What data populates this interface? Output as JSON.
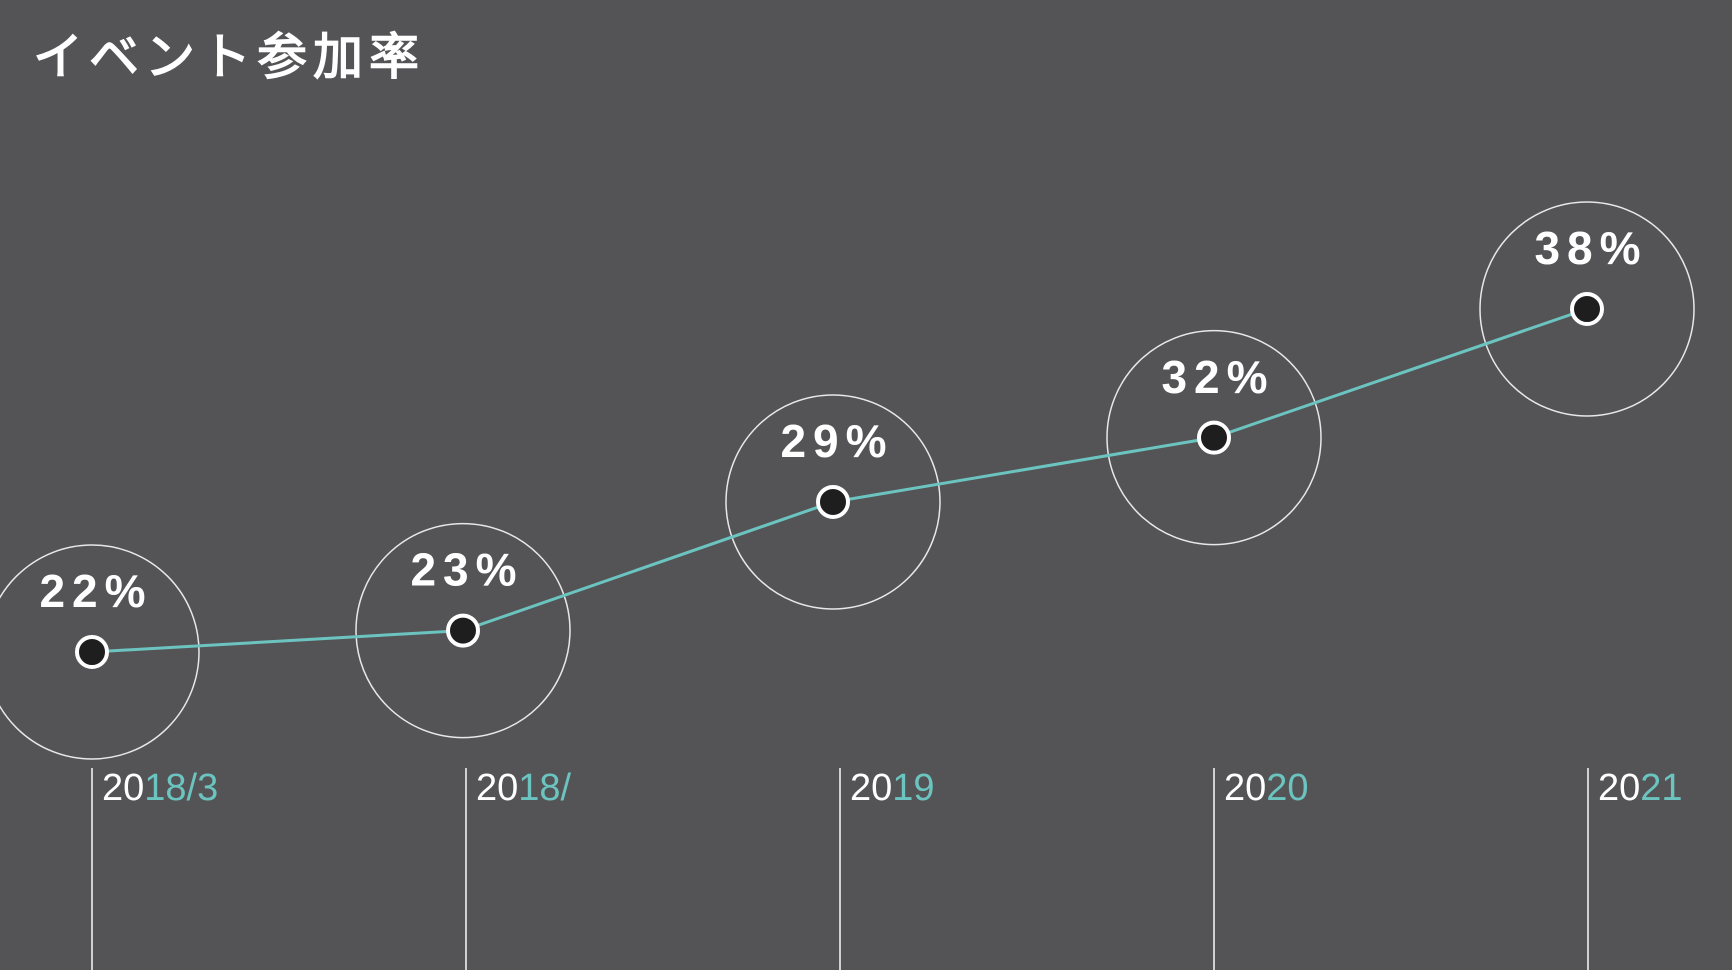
{
  "chart_data": {
    "type": "line",
    "title": "イベント参加率",
    "categories": [
      "2018/3",
      "2018/",
      "2019",
      "2020",
      "2021"
    ],
    "values": [
      22,
      23,
      29,
      32,
      38
    ],
    "value_labels": [
      "22%",
      "23%",
      "29%",
      "32%",
      "38%"
    ],
    "color": "#6cc4c0"
  }
}
